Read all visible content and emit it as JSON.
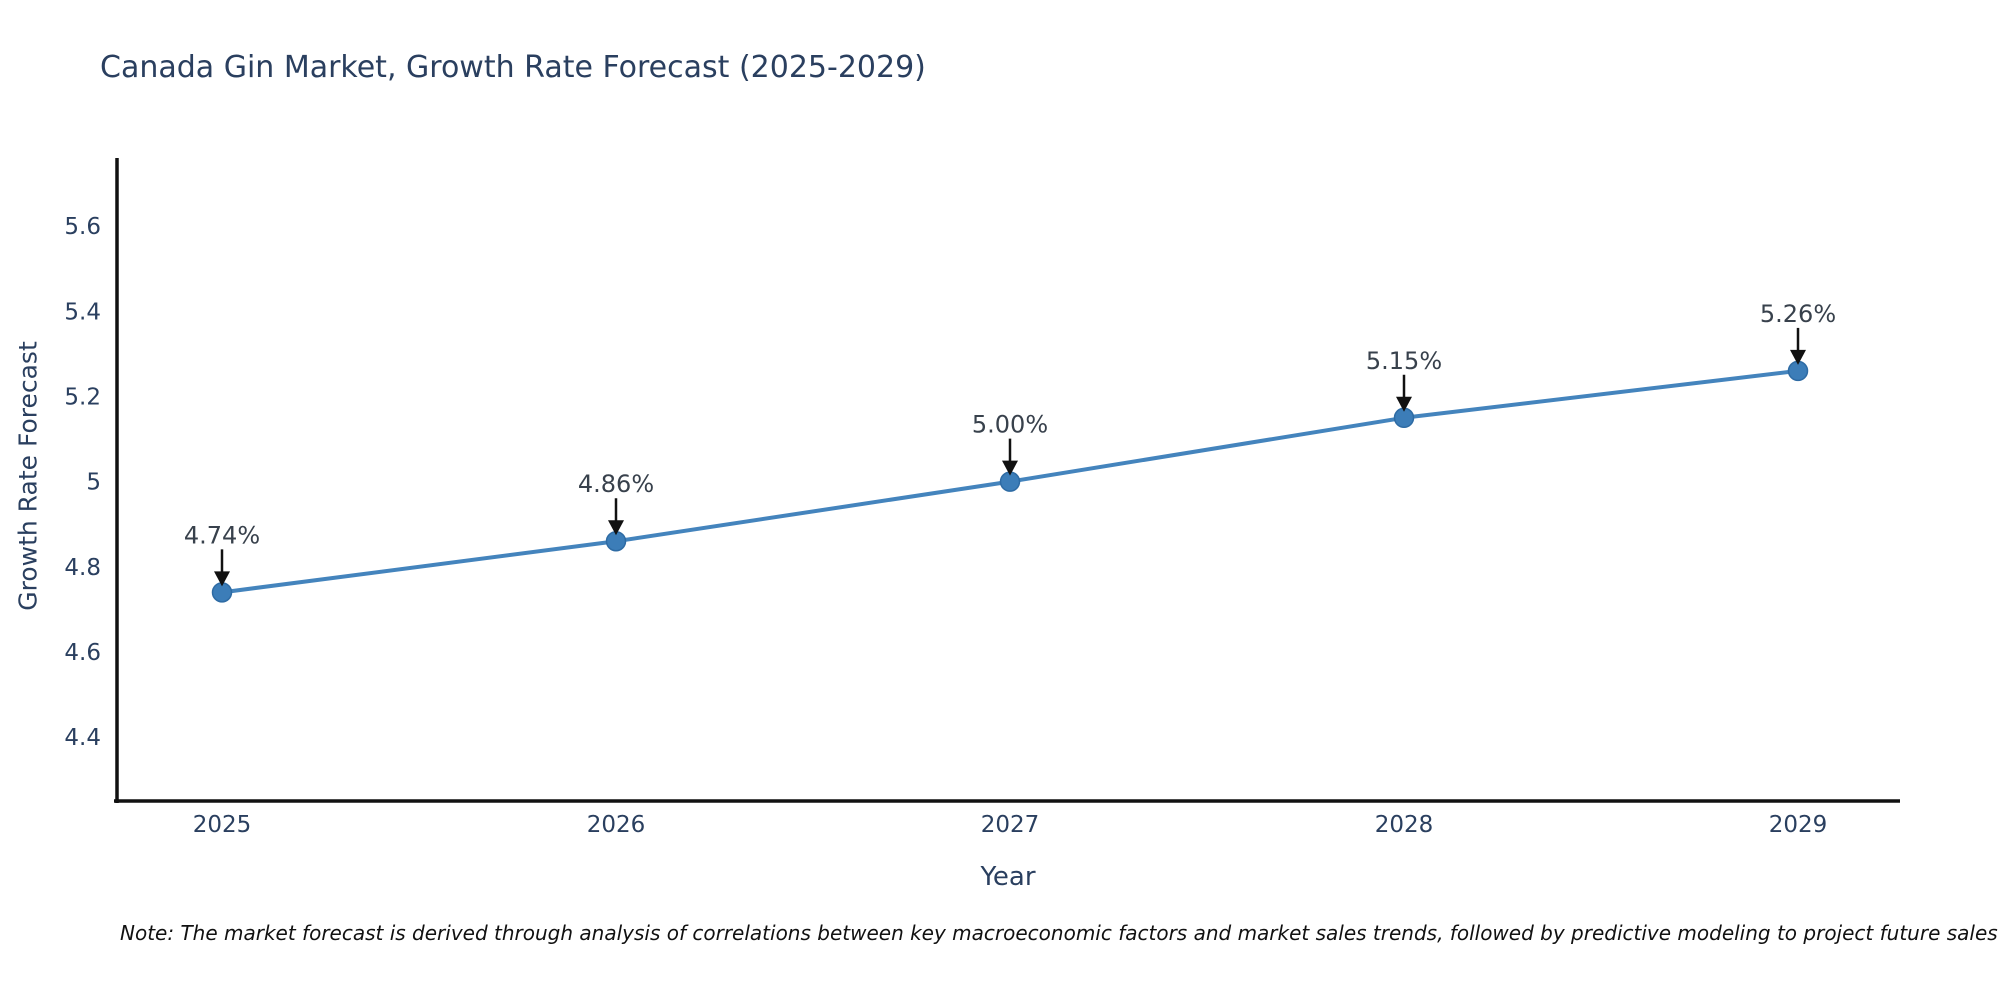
{
  "title": "Canada Gin Market, Growth Rate Forecast (2025-2029)",
  "note": "Note: The market forecast is derived through analysis of correlations between key macroeconomic factors and market sales trends, followed by predictive modeling to project future sales",
  "chart_data": {
    "type": "line",
    "title": "Canada Gin Market, Growth Rate Forecast (2025-2029)",
    "xlabel": "Year",
    "ylabel": "Growth Rate Forecast",
    "categories": [
      2025,
      2026,
      2027,
      2028,
      2029
    ],
    "series": [
      {
        "name": "Growth Rate Forecast",
        "values": [
          4.74,
          4.86,
          5.0,
          5.15,
          5.26
        ]
      }
    ],
    "point_labels": [
      "4.74%",
      "4.86%",
      "5.00%",
      "5.15%",
      "5.26%"
    ],
    "yticks": [
      4.4,
      4.6,
      4.8,
      5,
      5.2,
      5.4,
      5.6
    ],
    "ylim": [
      4.25,
      5.76
    ],
    "grid": false,
    "legend_position": "none",
    "marker_style": "circle",
    "annotation_arrows": true,
    "colors": {
      "line": "#4484bd",
      "marker": "#3c7db8",
      "marker_edge": "#2e6ba4",
      "axis": "#111111",
      "tick_text": "#2a3f5f",
      "annotation_text": "#38414c",
      "arrow": "#111111",
      "title_text": "#2a3f5f",
      "background": "#ffffff"
    }
  }
}
